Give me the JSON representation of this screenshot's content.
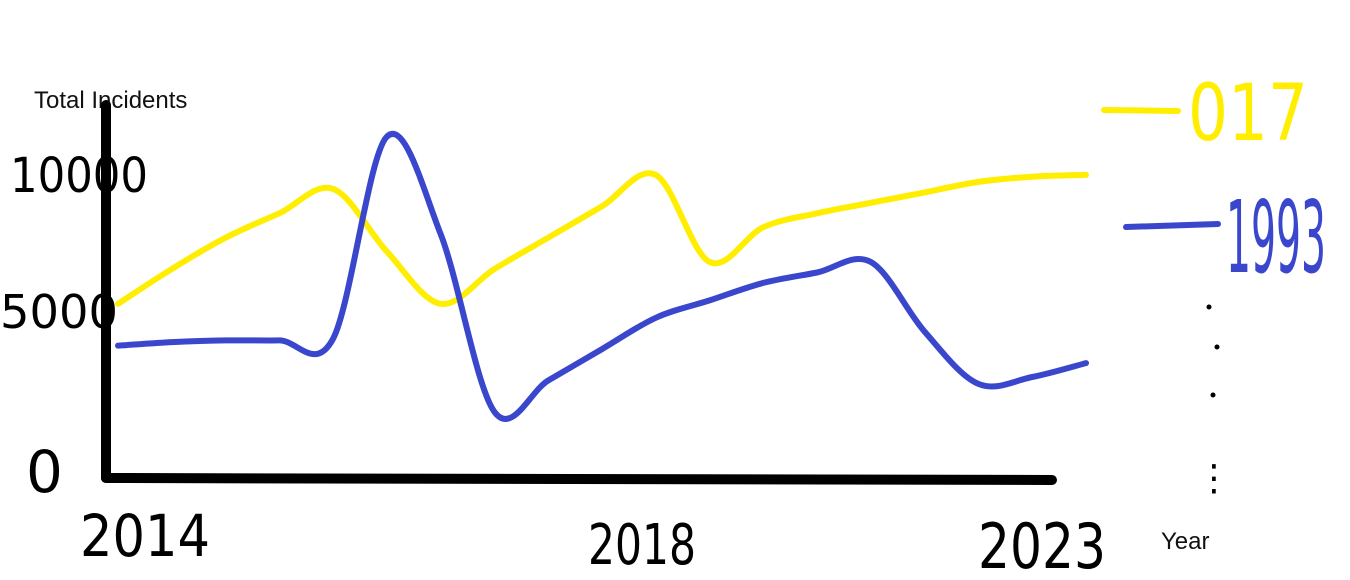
{
  "chart_data": {
    "type": "line",
    "title": "",
    "ylabel": "Total Incidents",
    "xlabel": "Year",
    "x": [
      2014,
      2014.5,
      2015,
      2015.5,
      2016,
      2016.5,
      2017,
      2017.5,
      2018,
      2018.5,
      2019,
      2019.5,
      2020,
      2020.5,
      2021,
      2021.5,
      2022,
      2022.5,
      2023
    ],
    "series": [
      {
        "name": "017",
        "color": "#ffee00",
        "values": [
          5000,
          6000,
          6900,
          7600,
          8300,
          6500,
          5000,
          6000,
          6900,
          7800,
          8700,
          6200,
          7200,
          7600,
          7900,
          8200,
          8500,
          8650,
          8700
        ]
      },
      {
        "name": "1993",
        "color": "#3a47cc",
        "values": [
          3800,
          3900,
          3950,
          3950,
          4000,
          9800,
          7000,
          1900,
          2800,
          3700,
          4600,
          5100,
          5600,
          5900,
          6200,
          4200,
          2700,
          2900,
          3300
        ]
      }
    ],
    "yticks": [
      0,
      5000,
      10000
    ],
    "ytick_labels": [
      "0",
      "5000",
      "10000"
    ],
    "xticks": [
      2014,
      2018,
      2023
    ],
    "xtick_labels": [
      "2014",
      "2018",
      "2023"
    ],
    "ylim": [
      0,
      12000
    ],
    "xlim": [
      2014,
      2023
    ],
    "grid": false,
    "legend_position": "right",
    "legend_ellipsis": "⋮"
  }
}
